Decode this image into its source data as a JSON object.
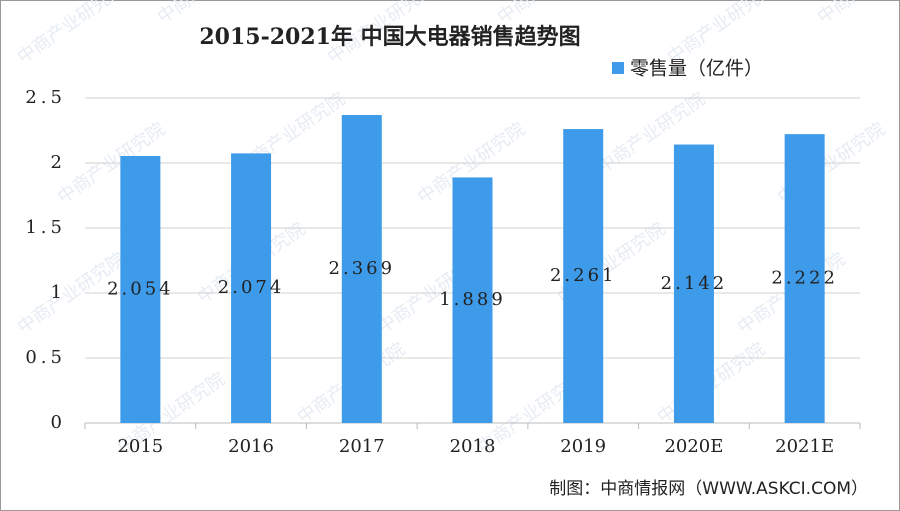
{
  "chart_data": {
    "type": "bar",
    "title": "2015-2021年 中国大电器销售趋势图",
    "categories": [
      "2015",
      "2016",
      "2017",
      "2018",
      "2019",
      "2020E",
      "2021E"
    ],
    "series": [
      {
        "name": "零售量（亿件）",
        "color": "#3d9be9",
        "values": [
          2.054,
          2.074,
          2.369,
          1.889,
          2.261,
          2.142,
          2.222
        ]
      }
    ],
    "ylim": [
      0,
      2.5
    ],
    "yticks": [
      0,
      0.5,
      1,
      1.5,
      2,
      2.5
    ],
    "grid": true,
    "legend": "top-right",
    "source": "制图：中商情报网（WWW.ASKCI.COM）",
    "watermark": "中商产业研究院"
  }
}
